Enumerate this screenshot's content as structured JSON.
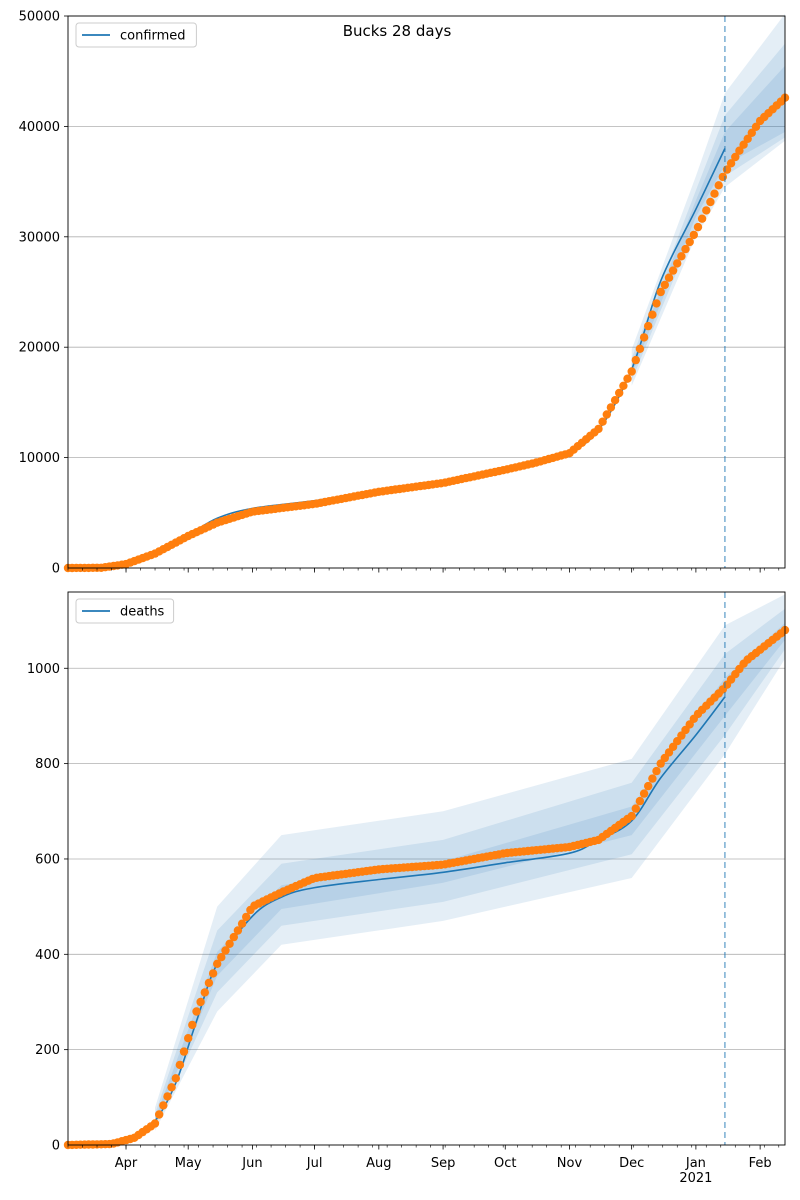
{
  "title": "Bucks 28 days",
  "colors": {
    "line": "#1f77b4",
    "observed": "#ff7f0e",
    "band": "#1f77b4",
    "grid": "#b0b0b0",
    "forecast_line": "#1f77b4"
  },
  "x_axis": {
    "ticks": [
      {
        "label": "Apr",
        "date": "2020-04-01"
      },
      {
        "label": "May",
        "date": "2020-05-01"
      },
      {
        "label": "Jun",
        "date": "2020-06-01"
      },
      {
        "label": "Jul",
        "date": "2020-07-01"
      },
      {
        "label": "Aug",
        "date": "2020-08-01"
      },
      {
        "label": "Sep",
        "date": "2020-09-01"
      },
      {
        "label": "Oct",
        "date": "2020-10-01"
      },
      {
        "label": "Nov",
        "date": "2020-11-01"
      },
      {
        "label": "Dec",
        "date": "2020-12-01"
      },
      {
        "label": "Jan",
        "date": "2021-01-01"
      },
      {
        "label": "Feb",
        "date": "2021-02-01"
      }
    ],
    "year_label": "2021",
    "range": [
      "2020-03-04",
      "2021-02-13"
    ]
  },
  "chart_data": [
    {
      "type": "line",
      "legend": "confirmed",
      "legend_position": "top-left",
      "ylim": [
        0,
        50000
      ],
      "yticks": [
        0,
        10000,
        20000,
        30000,
        40000,
        50000
      ],
      "grid": "horizontal",
      "forecast_start": "2021-01-15",
      "model_line": [
        [
          "2020-03-04",
          0
        ],
        [
          "2020-03-20",
          30
        ],
        [
          "2020-04-01",
          400
        ],
        [
          "2020-04-15",
          1500
        ],
        [
          "2020-05-01",
          3000
        ],
        [
          "2020-05-15",
          4500
        ],
        [
          "2020-06-01",
          5400
        ],
        [
          "2020-07-01",
          6100
        ],
        [
          "2020-08-01",
          7000
        ],
        [
          "2020-09-01",
          7900
        ],
        [
          "2020-10-01",
          9100
        ],
        [
          "2020-10-15",
          9700
        ],
        [
          "2020-11-01",
          10500
        ],
        [
          "2020-11-15",
          12500
        ],
        [
          "2020-12-01",
          18000
        ],
        [
          "2020-12-15",
          26000
        ],
        [
          "2021-01-01",
          32500
        ],
        [
          "2021-01-15",
          38000
        ]
      ],
      "bands": [
        {
          "lower": [
            [
              "2020-12-01",
              17500
            ],
            [
              "2021-01-01",
              31800
            ],
            [
              "2021-01-15",
              36500
            ],
            [
              "2021-02-13",
              39500
            ]
          ],
          "upper": [
            [
              "2020-12-01",
              18500
            ],
            [
              "2021-01-01",
              33300
            ],
            [
              "2021-01-15",
              39500
            ],
            [
              "2021-02-13",
              45500
            ]
          ]
        },
        {
          "lower": [
            [
              "2020-12-01",
              17000
            ],
            [
              "2021-01-01",
              31000
            ],
            [
              "2021-01-15",
              35500
            ],
            [
              "2021-02-13",
              39000
            ]
          ],
          "upper": [
            [
              "2020-12-01",
              19000
            ],
            [
              "2021-01-01",
              34200
            ],
            [
              "2021-01-15",
              41000
            ],
            [
              "2021-02-13",
              47500
            ]
          ]
        },
        {
          "lower": [
            [
              "2020-12-01",
              16500
            ],
            [
              "2021-01-01",
              30000
            ],
            [
              "2021-01-15",
              34500
            ],
            [
              "2021-02-13",
              38700
            ]
          ],
          "upper": [
            [
              "2020-12-01",
              19800
            ],
            [
              "2021-01-01",
              35500
            ],
            [
              "2021-01-15",
              43000
            ],
            [
              "2021-02-13",
              50200
            ]
          ]
        }
      ],
      "observed": [
        [
          "2020-03-04",
          0
        ],
        [
          "2020-03-20",
          20
        ],
        [
          "2020-04-01",
          350
        ],
        [
          "2020-04-15",
          1300
        ],
        [
          "2020-04-25",
          2300
        ],
        [
          "2020-05-01",
          2900
        ],
        [
          "2020-05-15",
          4100
        ],
        [
          "2020-06-01",
          5100
        ],
        [
          "2020-07-01",
          5800
        ],
        [
          "2020-08-01",
          6900
        ],
        [
          "2020-09-01",
          7700
        ],
        [
          "2020-10-01",
          8900
        ],
        [
          "2020-10-15",
          9500
        ],
        [
          "2020-11-01",
          10400
        ],
        [
          "2020-11-15",
          12600
        ],
        [
          "2020-12-01",
          17800
        ],
        [
          "2020-12-15",
          25000
        ],
        [
          "2021-01-01",
          30500
        ],
        [
          "2021-01-15",
          35800
        ],
        [
          "2021-01-22",
          37800
        ],
        [
          "2021-02-01",
          40500
        ],
        [
          "2021-02-13",
          42600
        ]
      ]
    },
    {
      "type": "line",
      "legend": "deaths",
      "legend_position": "top-left",
      "ylim": [
        0,
        1160
      ],
      "yticks": [
        0,
        200,
        400,
        600,
        800,
        1000
      ],
      "grid": "horizontal",
      "forecast_start": "2021-01-15",
      "model_line": [
        [
          "2020-03-04",
          0
        ],
        [
          "2020-03-25",
          2
        ],
        [
          "2020-04-05",
          15
        ],
        [
          "2020-04-15",
          50
        ],
        [
          "2020-04-25",
          130
        ],
        [
          "2020-05-05",
          260
        ],
        [
          "2020-05-15",
          380
        ],
        [
          "2020-06-01",
          480
        ],
        [
          "2020-06-15",
          520
        ],
        [
          "2020-07-01",
          540
        ],
        [
          "2020-08-01",
          557
        ],
        [
          "2020-09-01",
          572
        ],
        [
          "2020-10-01",
          592
        ],
        [
          "2020-11-01",
          612
        ],
        [
          "2020-11-15",
          640
        ],
        [
          "2020-12-01",
          680
        ],
        [
          "2020-12-15",
          770
        ],
        [
          "2021-01-01",
          860
        ],
        [
          "2021-01-15",
          940
        ]
      ],
      "bands": [
        {
          "lower": [
            [
              "2020-04-15",
              45
            ],
            [
              "2020-05-15",
              355
            ],
            [
              "2020-06-15",
              495
            ],
            [
              "2020-09-01",
              550
            ],
            [
              "2020-12-01",
              650
            ],
            [
              "2021-01-15",
              900
            ],
            [
              "2021-02-13",
              1060
            ]
          ],
          "upper": [
            [
              "2020-04-15",
              55
            ],
            [
              "2020-05-15",
              405
            ],
            [
              "2020-06-15",
              545
            ],
            [
              "2020-09-01",
              595
            ],
            [
              "2020-12-01",
              710
            ],
            [
              "2021-01-15",
              980
            ],
            [
              "2021-02-13",
              1095
            ]
          ]
        },
        {
          "lower": [
            [
              "2020-04-15",
              38
            ],
            [
              "2020-05-15",
              320
            ],
            [
              "2020-06-15",
              460
            ],
            [
              "2020-09-01",
              510
            ],
            [
              "2020-12-01",
              610
            ],
            [
              "2021-01-15",
              860
            ],
            [
              "2021-02-13",
              1040
            ]
          ],
          "upper": [
            [
              "2020-04-15",
              65
            ],
            [
              "2020-05-15",
              450
            ],
            [
              "2020-06-15",
              590
            ],
            [
              "2020-09-01",
              640
            ],
            [
              "2020-12-01",
              760
            ],
            [
              "2021-01-15",
              1030
            ],
            [
              "2021-02-13",
              1125
            ]
          ]
        },
        {
          "lower": [
            [
              "2020-04-15",
              30
            ],
            [
              "2020-05-15",
              280
            ],
            [
              "2020-06-15",
              420
            ],
            [
              "2020-09-01",
              470
            ],
            [
              "2020-12-01",
              560
            ],
            [
              "2021-01-15",
              820
            ],
            [
              "2021-02-13",
              1020
            ]
          ],
          "upper": [
            [
              "2020-04-15",
              78
            ],
            [
              "2020-05-15",
              500
            ],
            [
              "2020-06-15",
              650
            ],
            [
              "2020-09-01",
              700
            ],
            [
              "2020-12-01",
              810
            ],
            [
              "2021-01-15",
              1090
            ],
            [
              "2021-02-13",
              1155
            ]
          ]
        }
      ],
      "observed": [
        [
          "2020-03-04",
          0
        ],
        [
          "2020-03-25",
          2
        ],
        [
          "2020-04-05",
          15
        ],
        [
          "2020-04-15",
          45
        ],
        [
          "2020-04-25",
          140
        ],
        [
          "2020-05-05",
          280
        ],
        [
          "2020-05-15",
          380
        ],
        [
          "2020-05-25",
          450
        ],
        [
          "2020-06-01",
          500
        ],
        [
          "2020-06-15",
          530
        ],
        [
          "2020-07-01",
          560
        ],
        [
          "2020-08-01",
          578
        ],
        [
          "2020-09-01",
          588
        ],
        [
          "2020-10-01",
          612
        ],
        [
          "2020-11-01",
          625
        ],
        [
          "2020-11-15",
          640
        ],
        [
          "2020-12-01",
          690
        ],
        [
          "2020-12-15",
          800
        ],
        [
          "2021-01-01",
          900
        ],
        [
          "2021-01-15",
          960
        ],
        [
          "2021-01-25",
          1015
        ],
        [
          "2021-02-13",
          1080
        ]
      ]
    }
  ]
}
